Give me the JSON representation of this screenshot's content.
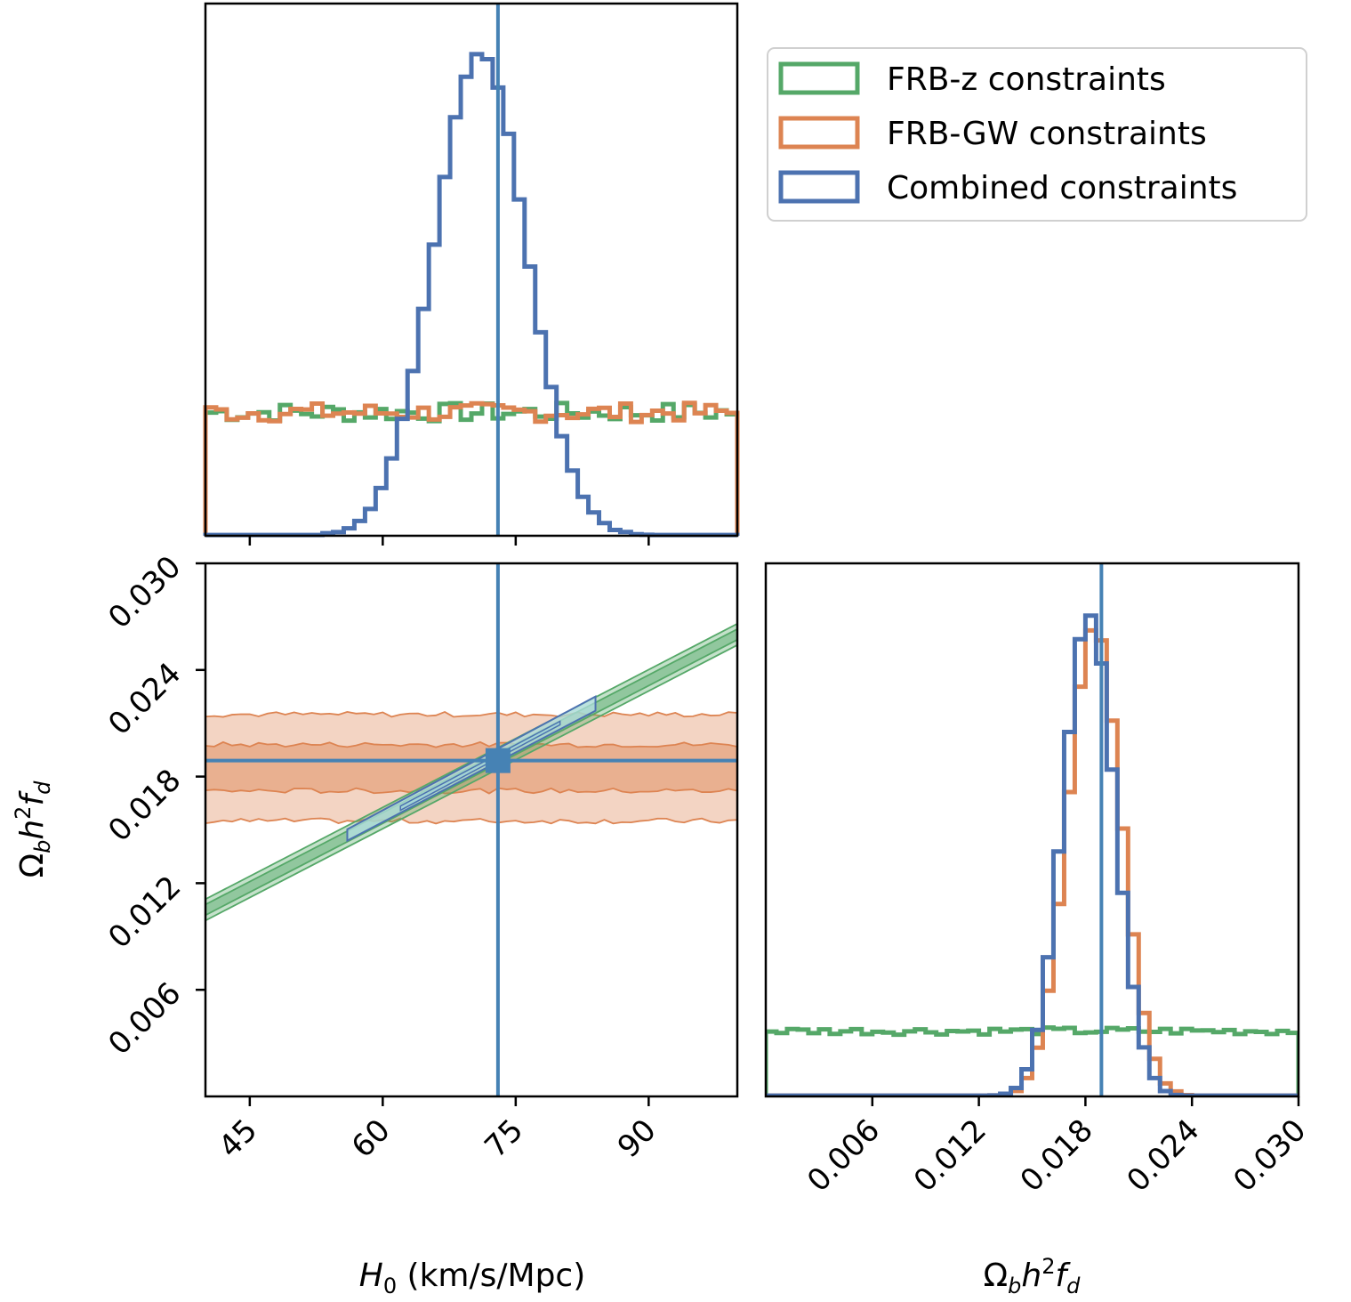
{
  "chart_data": [
    {
      "panel": "top-left",
      "type": "histogram",
      "title": "",
      "xlabel": "",
      "ylabel": "",
      "xlim": [
        40,
        100
      ],
      "ylim": [
        0,
        1.1
      ],
      "xticks": [
        45,
        60,
        75,
        90
      ],
      "show_x_ticklabels": false,
      "truth": 73,
      "series": [
        {
          "name": "FRB-z constraints",
          "color": "#55a868",
          "shape": "uniform",
          "level": 0.255
        },
        {
          "name": "FRB-GW constraints",
          "color": "#dd8452",
          "shape": "uniform",
          "level": 0.255
        },
        {
          "name": "Combined constraints",
          "color": "#4c72b0",
          "shape": "gaussian",
          "mean": 71,
          "sigma": 5.2,
          "peak": 1.0
        }
      ]
    },
    {
      "panel": "bottom-left",
      "type": "contour",
      "title": "",
      "xlabel": "H_0 (km/s/Mpc)",
      "ylabel": "Ω_b h^2 f_d",
      "xlim": [
        40,
        100
      ],
      "ylim": [
        0,
        0.03
      ],
      "xticks": [
        45,
        60,
        75,
        90
      ],
      "xticklabels": [
        "45",
        "60",
        "75",
        "90"
      ],
      "yticks": [
        0.006,
        0.012,
        0.018,
        0.024,
        0.03
      ],
      "yticklabels": [
        "0.006",
        "0.012",
        "0.018",
        "0.024",
        "0.030"
      ],
      "truth": {
        "x": 73,
        "y": 0.0189
      },
      "series": [
        {
          "name": "FRB-z constraints",
          "color": "#55a868",
          "relation": "linear",
          "x0": 40,
          "y0": 0.0105,
          "x1": 100,
          "y1": 0.026,
          "inner_halfwidth": 0.0003,
          "outer_halfwidth": 0.0006
        },
        {
          "name": "FRB-GW constraints",
          "color": "#dd8452",
          "relation": "flat",
          "center": 0.0185,
          "inner_halfwidth": 0.0013,
          "outer_halfwidth": 0.003
        },
        {
          "name": "Combined constraints",
          "color": "#4c72b0",
          "relation": "segment",
          "x0": 56,
          "x1": 84,
          "halfwidth": 0.0004
        }
      ]
    },
    {
      "panel": "bottom-right",
      "type": "histogram",
      "title": "",
      "xlabel": "Ω_b h^2 f_d",
      "ylabel": "",
      "xlim": [
        0,
        0.03
      ],
      "ylim": [
        0,
        1.1
      ],
      "xticks": [
        0.006,
        0.012,
        0.018,
        0.024,
        0.03
      ],
      "xticklabels": [
        "0.006",
        "0.012",
        "0.018",
        "0.024",
        "0.030"
      ],
      "truth": 0.0189,
      "series": [
        {
          "name": "FRB-z constraints",
          "color": "#55a868",
          "shape": "uniform",
          "level": 0.135
        },
        {
          "name": "FRB-GW constraints",
          "color": "#dd8452",
          "shape": "gaussian",
          "mean": 0.0185,
          "sigma": 0.0015,
          "peak": 0.975
        },
        {
          "name": "Combined constraints",
          "color": "#4c72b0",
          "shape": "gaussian",
          "mean": 0.0182,
          "sigma": 0.00145,
          "peak": 1.0
        }
      ]
    }
  ],
  "legend": {
    "position": "top-right",
    "entries": [
      {
        "label": "FRB-z constraints",
        "color": "#55a868"
      },
      {
        "label": "FRB-GW constraints",
        "color": "#dd8452"
      },
      {
        "label": "Combined constraints",
        "color": "#4c72b0"
      }
    ]
  },
  "colors": {
    "truth": "#4682b4",
    "frame": "#000000"
  }
}
